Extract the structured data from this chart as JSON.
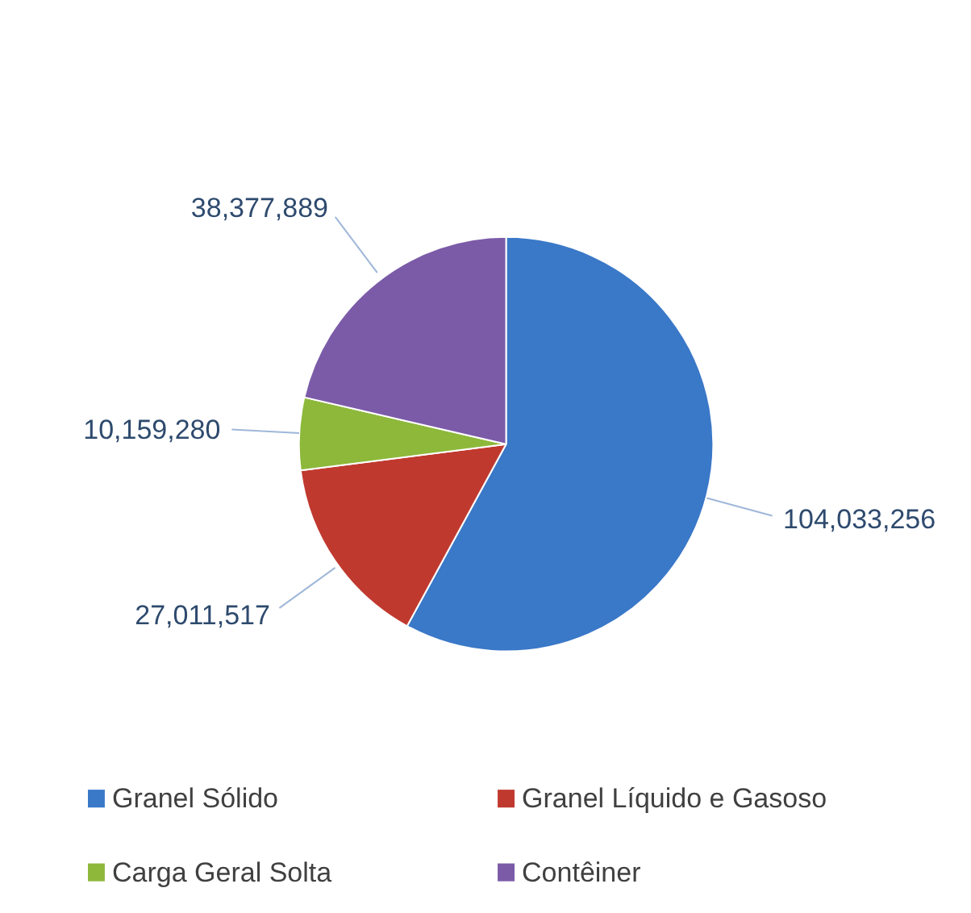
{
  "chart_data": {
    "type": "pie",
    "categories": [
      "Granel Sólido",
      "Granel Líquido e Gasoso",
      "Carga Geral Solta",
      "Contêiner"
    ],
    "values": [
      104033256,
      27011517,
      10159280,
      38377889
    ],
    "colors": [
      "#3a78c8",
      "#c0392f",
      "#8db83a",
      "#7b5ba8"
    ],
    "data_labels": true,
    "value_labels": [
      "104,033,256",
      "27,011,517",
      "10,159,280",
      "38,377,889"
    ],
    "legend": "bottom"
  }
}
